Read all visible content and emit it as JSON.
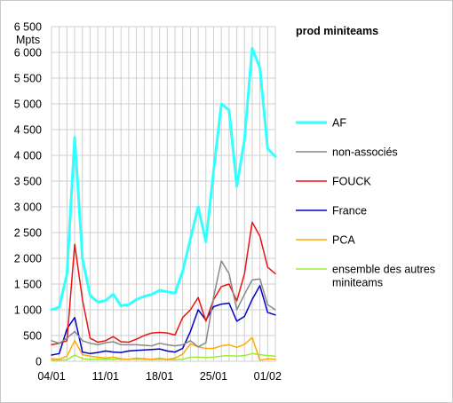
{
  "chart_data": {
    "type": "line",
    "title": "prod miniteams",
    "ylabel": "Mpts",
    "ylim": [
      0,
      6500
    ],
    "ytick_step": 500,
    "ytick_labels": [
      "0",
      "500",
      "1 000",
      "1 500",
      "2 000",
      "2 500",
      "3 000",
      "3 500",
      "4 000",
      "4 500",
      "5 000",
      "5 500",
      "6 000",
      "6 500"
    ],
    "x": [
      "04/01",
      "05/01",
      "06/01",
      "07/01",
      "08/01",
      "09/01",
      "10/01",
      "11/01",
      "12/01",
      "13/01",
      "14/01",
      "15/01",
      "16/01",
      "17/01",
      "18/01",
      "19/01",
      "20/01",
      "21/01",
      "22/01",
      "23/01",
      "24/01",
      "25/01",
      "26/01",
      "27/01",
      "28/01",
      "29/01",
      "30/01",
      "31/01",
      "01/02",
      "02/02"
    ],
    "xtick_labels": [
      "04/01",
      "11/01",
      "18/01",
      "25/01",
      "01/02"
    ],
    "grid": true,
    "legend_position": "right",
    "series": [
      {
        "name": "AF",
        "color": "#33ffff",
        "width": 3,
        "values": [
          1000,
          1050,
          1700,
          4350,
          2000,
          1280,
          1150,
          1180,
          1300,
          1080,
          1100,
          1200,
          1260,
          1300,
          1380,
          1350,
          1320,
          1750,
          2380,
          3000,
          2320,
          3700,
          5000,
          4880,
          3400,
          4300,
          6080,
          5700,
          4130,
          3980
        ]
      },
      {
        "name": "non-associés",
        "color": "#888888",
        "width": 1.5,
        "values": [
          400,
          350,
          450,
          580,
          400,
          350,
          320,
          360,
          380,
          320,
          320,
          320,
          310,
          300,
          350,
          320,
          300,
          320,
          400,
          280,
          360,
          1250,
          1950,
          1700,
          1000,
          1300,
          1580,
          1600,
          1100,
          1000
        ]
      },
      {
        "name": "FOUCK",
        "color": "#ee1111",
        "width": 1.5,
        "values": [
          320,
          350,
          400,
          2270,
          1200,
          450,
          370,
          400,
          480,
          380,
          370,
          430,
          500,
          550,
          560,
          550,
          510,
          850,
          1000,
          1240,
          780,
          1200,
          1450,
          1500,
          1170,
          1700,
          2700,
          2430,
          1830,
          1700
        ]
      },
      {
        "name": "France",
        "color": "#0000cc",
        "width": 1.5,
        "values": [
          120,
          150,
          630,
          850,
          180,
          150,
          170,
          200,
          180,
          170,
          200,
          210,
          220,
          230,
          240,
          200,
          180,
          250,
          580,
          1000,
          800,
          1060,
          1110,
          1130,
          780,
          870,
          1200,
          1470,
          950,
          900
        ]
      },
      {
        "name": "PCA",
        "color": "#ffaa00",
        "width": 1.5,
        "values": [
          50,
          40,
          100,
          400,
          130,
          100,
          80,
          60,
          80,
          50,
          40,
          60,
          50,
          40,
          60,
          40,
          60,
          140,
          340,
          280,
          250,
          250,
          300,
          320,
          270,
          330,
          460,
          20,
          50,
          40
        ]
      },
      {
        "name": "ensemble des autres miniteams",
        "color": "#99ee33",
        "width": 1.5,
        "values": [
          20,
          20,
          30,
          120,
          50,
          40,
          40,
          40,
          40,
          40,
          40,
          40,
          40,
          30,
          40,
          30,
          30,
          40,
          80,
          80,
          70,
          80,
          100,
          110,
          100,
          110,
          150,
          130,
          110,
          100
        ]
      }
    ]
  }
}
